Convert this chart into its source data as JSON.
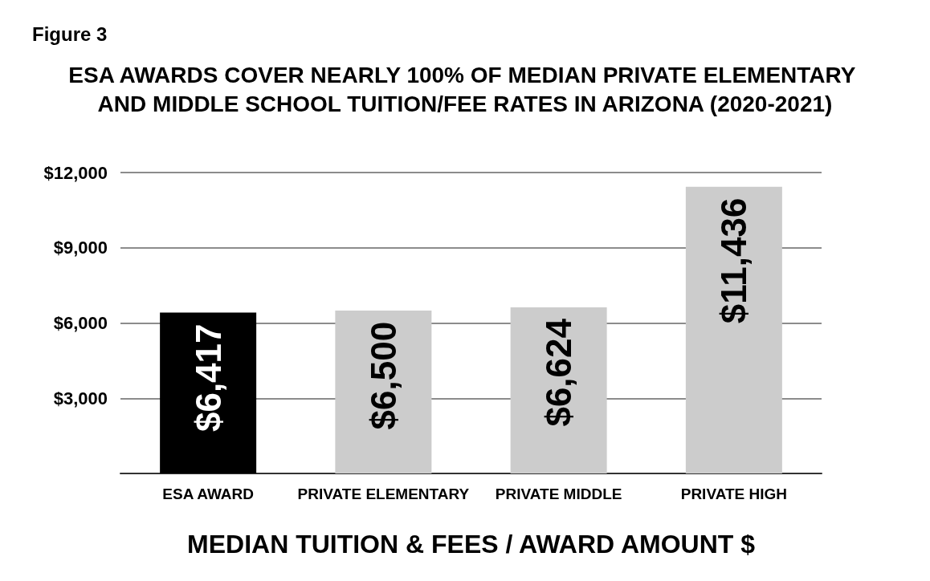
{
  "chart_data": {
    "type": "bar",
    "title": "ESA AWARDS COVER NEARLY 100% OF MEDIAN PRIVATE ELEMENTARY AND MIDDLE SCHOOL TUITION/FEE RATES IN ARIZONA (2020-2021)",
    "annotations": [
      "Figure 3"
    ],
    "xlabel": "MEDIAN TUITION & FEES / AWARD AMOUNT $",
    "categories": [
      "ESA AWARD",
      "PRIVATE ELEMENTARY",
      "PRIVATE MIDDLE",
      "PRIVATE HIGH"
    ],
    "values": [
      6417,
      6500,
      6624,
      11436
    ],
    "colors": [
      "#000000",
      "#cccccc",
      "#cccccc",
      "#cccccc"
    ],
    "value_labels": [
      "$6,417",
      "$6,500",
      "$6,624",
      "$11,436"
    ],
    "ylim": [
      0,
      12000
    ],
    "yticks": [
      {
        "value": 0,
        "label": null
      },
      {
        "value": 3000,
        "label": "$3,000"
      },
      {
        "value": 6000,
        "label": "$6,000"
      },
      {
        "value": 9000,
        "label": "$9,000"
      },
      {
        "value": 12000,
        "label": "$12,000"
      }
    ],
    "grid": "y"
  }
}
